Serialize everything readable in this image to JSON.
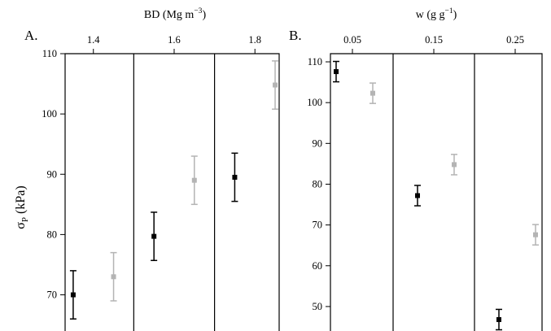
{
  "chart_data": [
    {
      "panel_label": "A.",
      "type": "scatter",
      "xlabel_main": "BD (Mg m",
      "xlabel_sup": "−3",
      "xlabel_end": ")",
      "x_tick_labels": [
        "1.4",
        "1.6",
        "1.8"
      ],
      "x_ticks": [
        1.4,
        1.6,
        1.8
      ],
      "xlim": [
        1.33,
        1.86
      ],
      "dividers": [
        1.5,
        1.7
      ],
      "ylabel_main": "σ",
      "ylabel_sub": "P",
      "ylabel_end": " (kPa)",
      "ylim": [
        64,
        110
      ],
      "y_ticks": [
        70,
        80,
        90,
        100,
        110
      ],
      "series": [
        {
          "color": "#000000",
          "points": [
            {
              "x": 1.35,
              "y": 70,
              "err": 4
            },
            {
              "x": 1.55,
              "y": 79.7,
              "err": 4
            },
            {
              "x": 1.75,
              "y": 89.5,
              "err": 4
            }
          ]
        },
        {
          "color": "#b4b4b4",
          "points": [
            {
              "x": 1.45,
              "y": 73,
              "err": 4
            },
            {
              "x": 1.65,
              "y": 89,
              "err": 4
            },
            {
              "x": 1.85,
              "y": 104.8,
              "err": 4
            }
          ]
        }
      ]
    },
    {
      "panel_label": "B.",
      "type": "scatter",
      "xlabel_main": "w (g g",
      "xlabel_sup": "−1",
      "xlabel_end": ")",
      "x_tick_labels": [
        "0.05",
        "0.15",
        "0.25"
      ],
      "x_ticks": [
        0.05,
        0.15,
        0.25
      ],
      "xlim": [
        0.023,
        0.283
      ],
      "dividers": [
        0.1,
        0.2
      ],
      "ylim": [
        44,
        112
      ],
      "y_ticks": [
        50,
        60,
        70,
        80,
        90,
        100,
        110
      ],
      "series": [
        {
          "color": "#000000",
          "points": [
            {
              "x": 0.03,
              "y": 107.6,
              "err": 2.5
            },
            {
              "x": 0.13,
              "y": 77.2,
              "err": 2.5
            },
            {
              "x": 0.23,
              "y": 46.8,
              "err": 2.5
            }
          ]
        },
        {
          "color": "#b4b4b4",
          "points": [
            {
              "x": 0.075,
              "y": 102.3,
              "err": 2.5
            },
            {
              "x": 0.175,
              "y": 84.8,
              "err": 2.5
            },
            {
              "x": 0.275,
              "y": 67.6,
              "err": 2.5
            }
          ]
        }
      ]
    }
  ]
}
